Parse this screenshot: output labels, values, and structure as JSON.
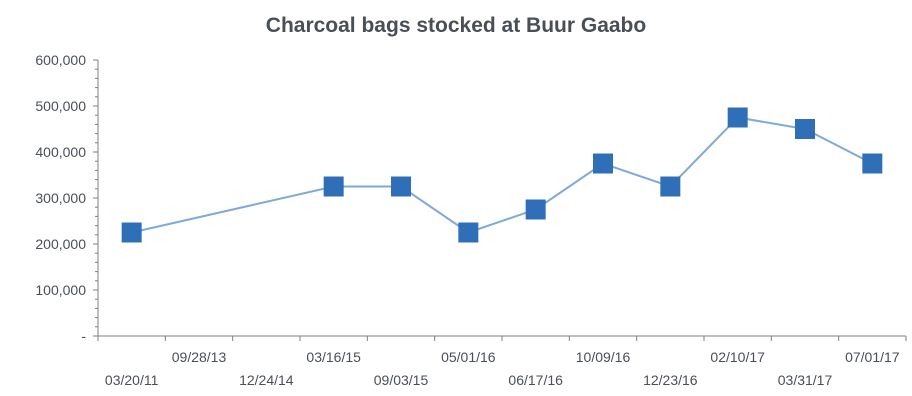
{
  "chart_data": {
    "type": "line",
    "title": "Charcoal bags stocked at Buur Gaabo",
    "xlabel": "",
    "ylabel": "",
    "categories": [
      "03/20/11",
      "09/28/13",
      "12/24/14",
      "03/16/15",
      "09/03/15",
      "05/01/16",
      "06/17/16",
      "10/09/16",
      "12/23/16",
      "02/10/17",
      "03/31/17",
      "07/01/17"
    ],
    "series": [
      {
        "values": [
          225000,
          null,
          null,
          325000,
          325000,
          225000,
          275000,
          375000,
          325000,
          475000,
          450000,
          375000
        ]
      }
    ],
    "ylim": [
      0,
      600000
    ],
    "yticks": [
      "-",
      "100,000",
      "200,000",
      "300,000",
      "400,000",
      "500,000",
      "600,000"
    ],
    "grid": false,
    "legend": "none",
    "colors": {
      "line": "#7fa9d8",
      "marker": "#2f6fb8",
      "axis": "#7f7f7f",
      "text": "#4a4f57"
    }
  }
}
